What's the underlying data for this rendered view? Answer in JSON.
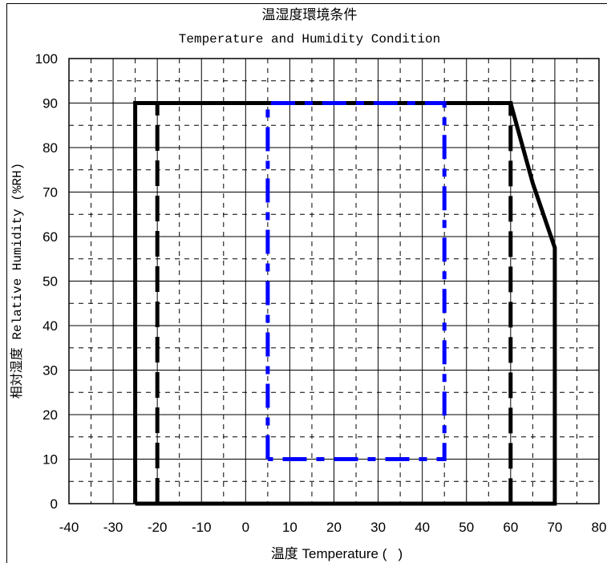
{
  "chart_data": {
    "type": "line",
    "title": "温湿度環境条件",
    "subtitle": "Temperature and Humidity Condition",
    "xlabel": "温度 Temperature (   )",
    "ylabel": "相対湿度 Relative Humidity (%RH)",
    "xlim": [
      -40,
      80
    ],
    "ylim": [
      0,
      100
    ],
    "x_ticks": [
      "-40",
      "-30",
      "-20",
      "-10",
      "0",
      "10",
      "20",
      "30",
      "40",
      "50",
      "60",
      "70",
      "80"
    ],
    "y_ticks": [
      "0",
      "10",
      "20",
      "30",
      "40",
      "50",
      "60",
      "70",
      "80",
      "90",
      "100"
    ],
    "grid": true,
    "legend": "none",
    "series": [
      {
        "style": "solid-black",
        "color": "#000000",
        "points": [
          [
            -25,
            0
          ],
          [
            -25,
            90
          ],
          [
            60,
            90
          ],
          [
            65,
            72
          ],
          [
            70,
            57.5
          ],
          [
            70,
            0
          ],
          [
            -25,
            0
          ]
        ]
      },
      {
        "style": "dashed-black",
        "color": "#000000",
        "points": [
          [
            -20,
            0
          ],
          [
            -20,
            90
          ],
          [
            60,
            90
          ],
          [
            60,
            0
          ],
          [
            -20,
            0
          ]
        ]
      },
      {
        "style": "dashed-blue",
        "color": "#0000ff",
        "points": [
          [
            5,
            10
          ],
          [
            5,
            90
          ],
          [
            45,
            90
          ],
          [
            45,
            10
          ],
          [
            5,
            10
          ]
        ]
      }
    ]
  }
}
